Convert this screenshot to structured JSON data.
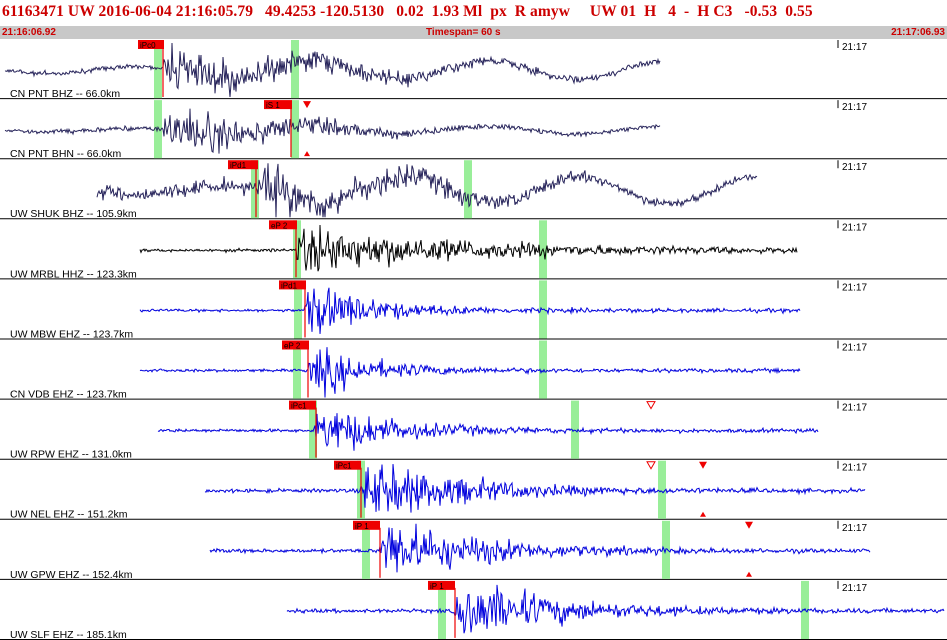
{
  "header": {
    "title": "61163471 UW 2016-06-04 21:16:05.79   49.4253 -120.5130   0.02  1.93 Ml  px  R amyw     UW 01  H   4  -  H C3   -0.53  0.55",
    "start_time": "21:16:06.92",
    "timespan": "Timespan=  60 s",
    "end_time": "21:17:06.93"
  },
  "colors": {
    "title": "#cc0000",
    "header_bg": "#c8c8c8",
    "pick": "#ee0000",
    "window": "#99ee99"
  },
  "traces": [
    {
      "label": "CN PNT BHZ -- 66.0km",
      "minute": "21:17",
      "color": "#26235a",
      "picks": [
        {
          "label": "iPc0"
        }
      ],
      "marker": null
    },
    {
      "label": "CN PNT BHN -- 66.0km",
      "minute": "21:17",
      "color": "#26235a",
      "picks": [
        {
          "label": "iS 1"
        }
      ],
      "marker": "both"
    },
    {
      "label": "UW SHUK BHZ -- 105.9km",
      "minute": "21:17",
      "color": "#26235a",
      "picks": [
        {
          "label": "iPd1"
        }
      ],
      "marker": null
    },
    {
      "label": "UW MRBL HHZ -- 123.3km",
      "minute": "21:17",
      "color": "#000000",
      "picks": [
        {
          "label": "eP 2"
        }
      ],
      "marker": null
    },
    {
      "label": "UW MBW EHZ -- 123.7km",
      "minute": "21:17",
      "color": "#0000dd",
      "picks": [
        {
          "label": "iPd1"
        }
      ],
      "marker": null
    },
    {
      "label": "CN VDB EHZ -- 123.7km",
      "minute": "21:17",
      "color": "#0000dd",
      "picks": [
        {
          "label": "eP 2"
        }
      ],
      "marker": null
    },
    {
      "label": "UW RPW EHZ -- 131.0km",
      "minute": "21:17",
      "color": "#0000dd",
      "picks": [
        {
          "label": "iPc1"
        }
      ],
      "marker": "open"
    },
    {
      "label": "UW NEL EHZ -- 151.2km",
      "minute": "21:17",
      "color": "#0000dd",
      "picks": [
        {
          "label": "iPc1"
        }
      ],
      "marker": "both"
    },
    {
      "label": "UW GPW EHZ -- 152.4km",
      "minute": "21:17",
      "color": "#0000dd",
      "picks": [
        {
          "label": "iP 1"
        }
      ],
      "marker": "both"
    },
    {
      "label": "UW SLF EHZ -- 185.1km",
      "minute": "21:17",
      "color": "#0000dd",
      "picks": [
        {
          "label": "iP 1"
        }
      ],
      "marker": null
    }
  ]
}
